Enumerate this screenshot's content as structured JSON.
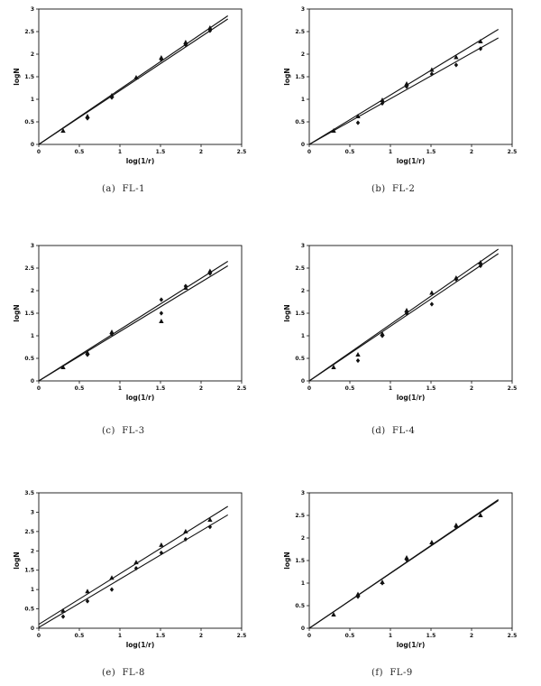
{
  "chart_data": [
    {
      "type": "scatter",
      "caption": "(a)  FL-1",
      "xlabel": "log(1/r)",
      "ylabel": "logN",
      "xlim": [
        0,
        2.5
      ],
      "ylim": [
        0,
        3
      ],
      "xticks": [
        "0",
        "0.5",
        "1",
        "1.5",
        "2",
        "2.5"
      ],
      "yticks": [
        "0",
        "0.5",
        "1",
        "1.5",
        "2",
        "2.5",
        "3"
      ],
      "series": [
        {
          "marker": "triangle",
          "x": [
            0.3,
            0.6,
            0.9,
            1.2,
            1.51,
            1.81,
            2.11
          ],
          "y": [
            0.3,
            0.62,
            1.08,
            1.48,
            1.92,
            2.26,
            2.58
          ],
          "fit_end": [
            2.33,
            2.85
          ]
        },
        {
          "marker": "diamond",
          "x": [
            0.6,
            0.9,
            1.51,
            1.81,
            2.11
          ],
          "y": [
            0.58,
            1.04,
            1.88,
            2.21,
            2.52
          ],
          "fit_end": [
            2.33,
            2.78
          ]
        }
      ]
    },
    {
      "type": "scatter",
      "caption": "(b)  FL-2",
      "xlabel": "log(1/r)",
      "ylabel": "logN",
      "xlim": [
        0,
        2.5
      ],
      "ylim": [
        0,
        3
      ],
      "xticks": [
        "0",
        "0.5",
        "1",
        "1.5",
        "2",
        "2.5"
      ],
      "yticks": [
        "0",
        "0.5",
        "1",
        "1.5",
        "2",
        "2.5",
        "3"
      ],
      "series": [
        {
          "marker": "triangle",
          "x": [
            0.3,
            0.6,
            0.9,
            1.2,
            1.51,
            1.81,
            2.11
          ],
          "y": [
            0.3,
            0.62,
            0.98,
            1.34,
            1.65,
            1.93,
            2.28
          ],
          "fit_end": [
            2.33,
            2.55
          ]
        },
        {
          "marker": "diamond",
          "x": [
            0.6,
            0.9,
            1.2,
            1.51,
            1.81,
            2.11
          ],
          "y": [
            0.48,
            0.91,
            1.28,
            1.56,
            1.76,
            2.12
          ],
          "fit_end": [
            2.33,
            2.36
          ]
        }
      ]
    },
    {
      "type": "scatter",
      "caption": "(c)  FL-3",
      "xlabel": "log(1/r)",
      "ylabel": "logN",
      "xlim": [
        0,
        2.5
      ],
      "ylim": [
        0,
        3
      ],
      "xticks": [
        "0",
        "0.5",
        "1",
        "1.5",
        "2",
        "2.5"
      ],
      "yticks": [
        "0",
        "0.5",
        "1",
        "1.5",
        "2",
        "2.5",
        "3"
      ],
      "series": [
        {
          "marker": "triangle",
          "x": [
            0.3,
            0.6,
            0.9,
            1.51,
            1.81,
            2.11
          ],
          "y": [
            0.3,
            0.62,
            1.08,
            1.32,
            2.06,
            2.43
          ],
          "fit_end": [
            2.33,
            2.65
          ]
        },
        {
          "marker": "diamond",
          "x": [
            0.6,
            0.9,
            1.51,
            1.51,
            1.81,
            2.11
          ],
          "y": [
            0.58,
            1.04,
            1.5,
            1.8,
            2.1,
            2.38
          ],
          "fit_end": [
            2.33,
            2.55
          ]
        }
      ]
    },
    {
      "type": "scatter",
      "caption": "(d)  FL-4",
      "xlabel": "log(1/r)",
      "ylabel": "logN",
      "xlim": [
        0,
        2.5
      ],
      "ylim": [
        0,
        3
      ],
      "xticks": [
        "0",
        "0.5",
        "1",
        "1.5",
        "2",
        "2.5"
      ],
      "yticks": [
        "0",
        "0.5",
        "1",
        "1.5",
        "2",
        "2.5",
        "3"
      ],
      "series": [
        {
          "marker": "triangle",
          "x": [
            0.3,
            0.6,
            0.9,
            1.2,
            1.51,
            1.81,
            2.11
          ],
          "y": [
            0.3,
            0.58,
            1.04,
            1.56,
            1.95,
            2.28,
            2.62
          ],
          "fit_end": [
            2.33,
            2.92
          ]
        },
        {
          "marker": "diamond",
          "x": [
            0.6,
            0.9,
            1.2,
            1.51,
            1.81,
            2.11
          ],
          "y": [
            0.45,
            1.0,
            1.5,
            1.7,
            2.25,
            2.55
          ],
          "fit_end": [
            2.33,
            2.82
          ]
        }
      ]
    },
    {
      "type": "scatter",
      "caption": "(e)  FL-8",
      "xlabel": "log(1/r)",
      "ylabel": "logN",
      "xlim": [
        0,
        2.5
      ],
      "ylim": [
        0,
        3.5
      ],
      "xticks": [
        "0",
        "0.5",
        "1",
        "1.5",
        "2",
        "2.5"
      ],
      "yticks": [
        "0",
        "0.5",
        "1",
        "1.5",
        "2",
        "2.5",
        "3",
        "3.5"
      ],
      "series": [
        {
          "marker": "triangle",
          "x": [
            0.3,
            0.6,
            0.9,
            1.2,
            1.51,
            1.81,
            2.11
          ],
          "y": [
            0.45,
            0.95,
            1.3,
            1.7,
            2.15,
            2.5,
            2.8
          ],
          "fit_start": [
            0,
            0.1
          ],
          "fit_end": [
            2.33,
            3.15
          ]
        },
        {
          "marker": "diamond",
          "x": [
            0.3,
            0.6,
            0.9,
            1.2,
            1.51,
            1.81,
            2.11
          ],
          "y": [
            0.3,
            0.7,
            1.0,
            1.55,
            1.95,
            2.3,
            2.62
          ],
          "fit_start": [
            0,
            0.02
          ],
          "fit_end": [
            2.33,
            2.93
          ]
        }
      ]
    },
    {
      "type": "scatter",
      "caption": "(f)  FL-9",
      "xlabel": "log(1/r)",
      "ylabel": "logN",
      "xlim": [
        0,
        2.5
      ],
      "ylim": [
        0,
        3
      ],
      "xticks": [
        "0",
        "0.5",
        "1",
        "1.5",
        "2",
        "2.5"
      ],
      "yticks": [
        "0",
        "0.5",
        "1",
        "1.5",
        "2",
        "2.5",
        "3"
      ],
      "series": [
        {
          "marker": "triangle",
          "x": [
            0.3,
            0.6,
            0.9,
            1.2,
            1.51,
            1.81,
            2.11
          ],
          "y": [
            0.3,
            0.75,
            1.02,
            1.56,
            1.9,
            2.28,
            2.5
          ],
          "fit_end": [
            2.33,
            2.85
          ]
        },
        {
          "marker": "diamond",
          "x": [
            0.6,
            0.9,
            1.2,
            1.51,
            1.81
          ],
          "y": [
            0.7,
            1.0,
            1.52,
            1.88,
            2.24
          ],
          "fit_end": [
            2.33,
            2.83
          ]
        }
      ]
    }
  ]
}
